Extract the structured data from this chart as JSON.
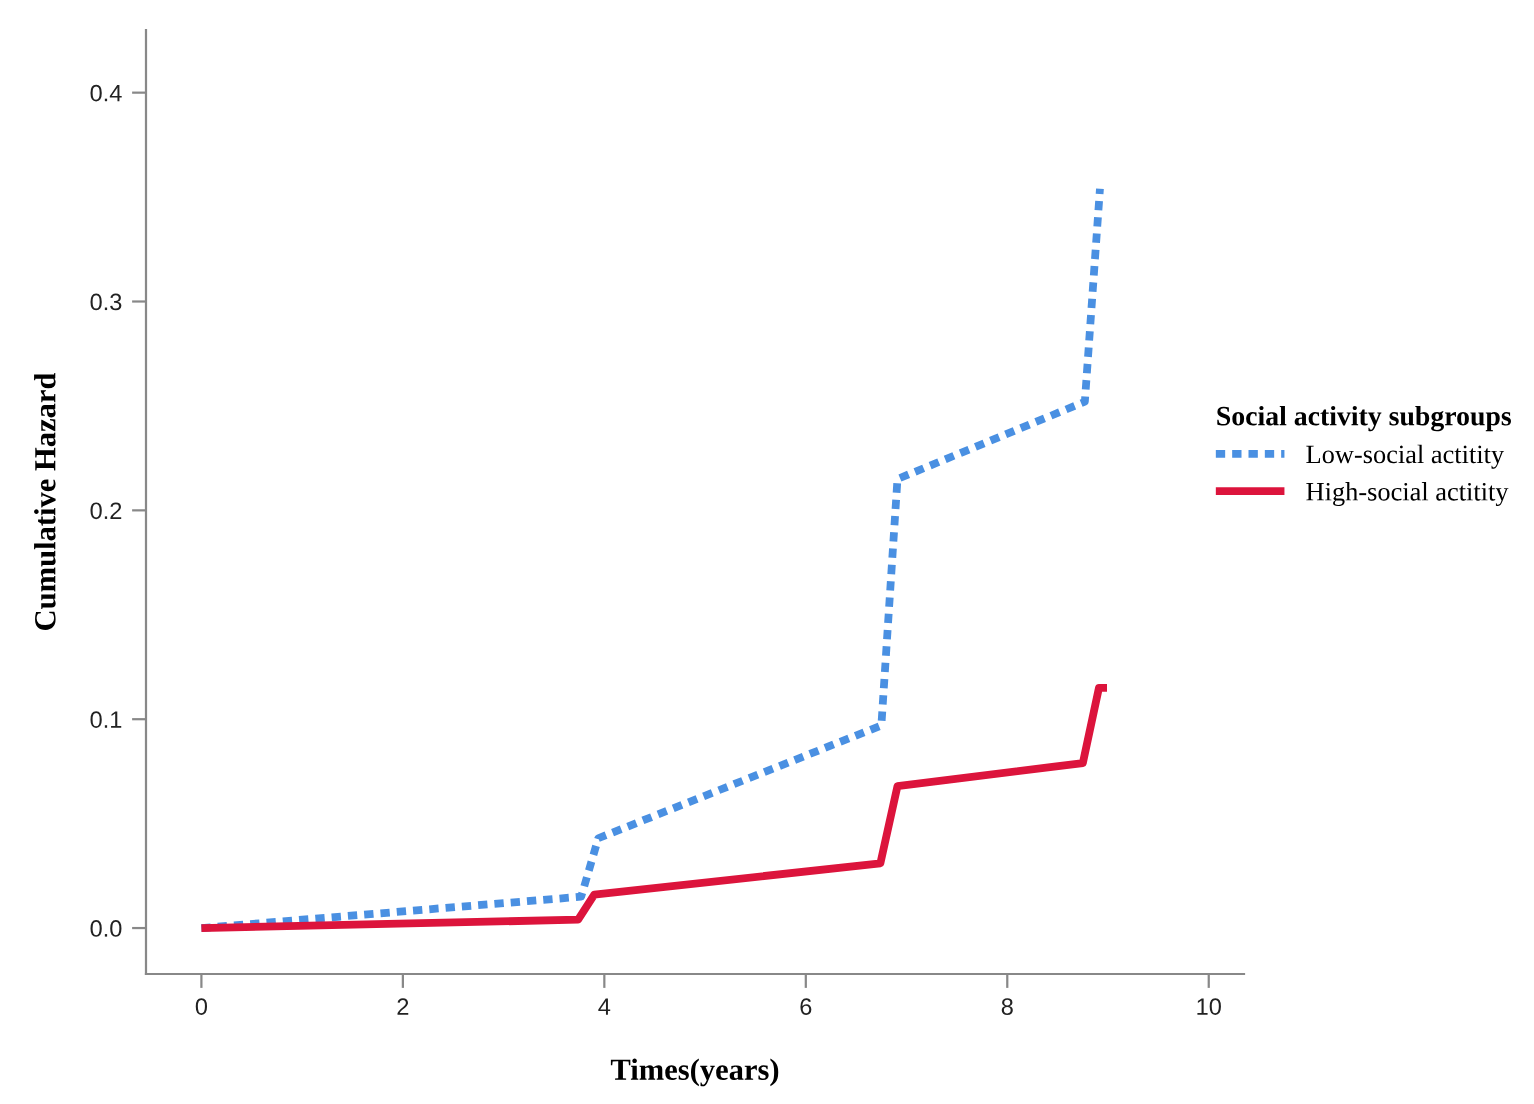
{
  "chart_data": {
    "type": "line",
    "xlabel": "Times(years)",
    "ylabel": "Cumulative Hazard",
    "legend_title": "Social activity subgroups",
    "xlim": [
      -0.55,
      10.35
    ],
    "ylim": [
      -0.022,
      0.43
    ],
    "xticks": [
      0,
      2,
      4,
      6,
      8,
      10
    ],
    "yticks": [
      {
        "value": 0,
        "label": "0.0"
      },
      0.1,
      0.2,
      0.3,
      0.4
    ],
    "grid": false,
    "legend": "right",
    "marker": "none",
    "series": [
      {
        "name": "Low-social actitity",
        "color": "#4a90e2",
        "line_style": "dotted",
        "x": [
          0,
          3.77,
          3.94,
          6.75,
          6.91,
          8.77,
          8.92
        ],
        "values": [
          0,
          0.015,
          0.043,
          0.097,
          0.215,
          0.252,
          0.354
        ]
      },
      {
        "name": "High-social actitity",
        "color": "#dc143c",
        "line_style": "solid",
        "x": [
          0,
          3.74,
          3.9,
          6.74,
          6.91,
          8.75,
          8.91,
          8.99
        ],
        "values": [
          0,
          0.004,
          0.016,
          0.031,
          0.068,
          0.079,
          0.115,
          0.115
        ]
      }
    ]
  }
}
